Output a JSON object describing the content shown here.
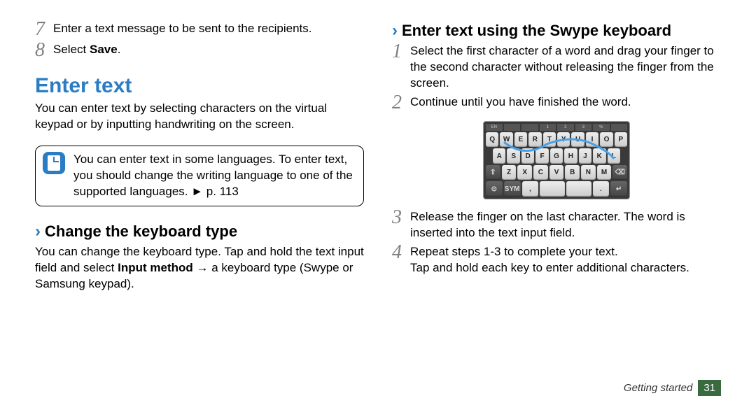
{
  "left": {
    "step7_num": "7",
    "step7_text": "Enter a text message to be sent to the recipients.",
    "step8_num": "8",
    "step8_text_prefix": "Select ",
    "step8_text_bold": "Save",
    "step8_text_suffix": ".",
    "section_title": "Enter text",
    "intro": "You can enter text by selecting characters on the virtual keypad or by inputting handwriting on the screen.",
    "note": "You can enter text in some languages. To enter text, you should change the writing language to one of the supported languages. ► p. 113",
    "sub1_title": "Change the keyboard type",
    "sub1_body_a": "You can change the keyboard type. Tap and hold the text input field and select ",
    "sub1_body_bold": "Input method",
    "sub1_body_b": " → a keyboard type (Swype or Samsung keypad)."
  },
  "right": {
    "sub2_title": "Enter text using the Swype keyboard",
    "step1_num": "1",
    "step1_text": "Select the first character of a word and drag your finger to the second character without releasing the finger from the screen.",
    "step2_num": "2",
    "step2_text": "Continue until you have finished the word.",
    "step3_num": "3",
    "step3_text": "Release the finger on the last character. The word is inserted into the text input field.",
    "step4_num": "4",
    "step4_text": "Repeat steps 1-3 to complete your text.",
    "step4_extra": "Tap and hold each key to enter additional characters.",
    "keyboard": {
      "top_labels": [
        "EN",
        "",
        "",
        "1",
        "2",
        "3",
        "%",
        ""
      ],
      "row1": [
        "Q",
        "W",
        "E",
        "R",
        "T",
        "Y",
        "U",
        "I",
        "O",
        "P"
      ],
      "row2": [
        "A",
        "S",
        "D",
        "F",
        "G",
        "H",
        "J",
        "K",
        "L"
      ],
      "row3": [
        "⇧",
        "Z",
        "X",
        "C",
        "V",
        "B",
        "N",
        "M",
        "⌫"
      ],
      "row4": [
        "⊙",
        "SYM",
        ",",
        "",
        "",
        ".",
        "↵"
      ],
      "swype_color": "#4aa0e8"
    }
  },
  "footer": {
    "section": "Getting started",
    "page": "31"
  },
  "colors": {
    "heading_blue": "#2a7cc4",
    "page_badge_bg": "#3a6a3f",
    "step_num_gray": "#808080"
  }
}
